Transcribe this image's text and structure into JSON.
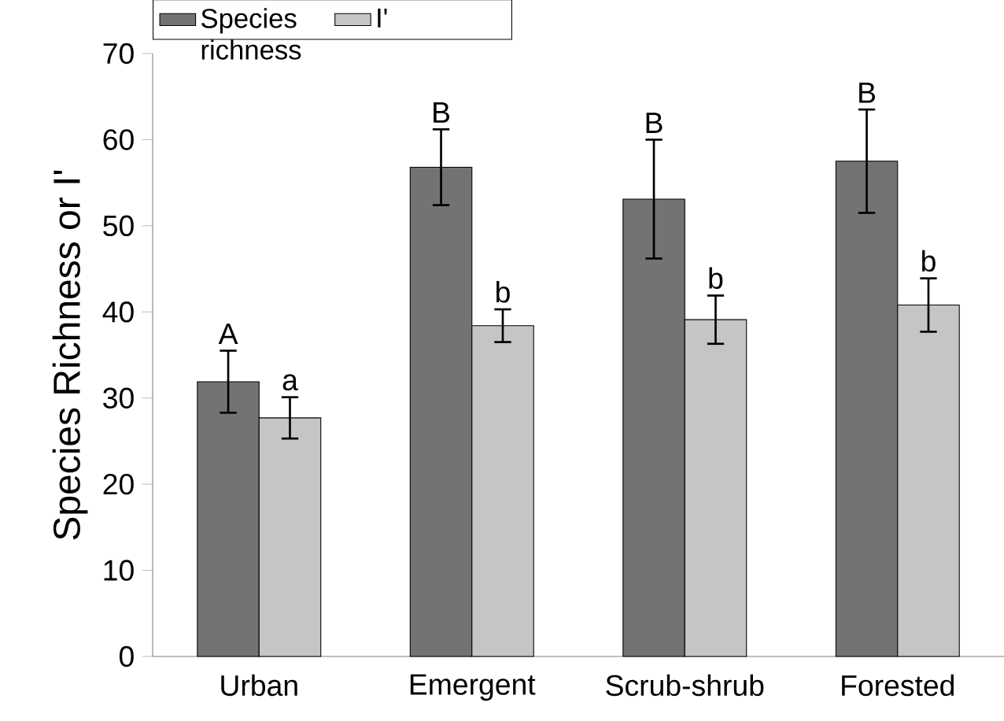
{
  "chart_data": {
    "type": "bar",
    "ylabel": "Species Richness or I'",
    "categories": [
      "Urban",
      "Emergent",
      "Scrub-shrub",
      "Forested"
    ],
    "series": [
      {
        "name": "Species richness",
        "color": "#737373",
        "values": [
          31.9,
          56.8,
          53.1,
          57.5
        ],
        "errors": [
          3.6,
          4.4,
          6.9,
          6.0
        ]
      },
      {
        "name": "I'",
        "color": "#c5c5c5",
        "values": [
          27.7,
          38.4,
          39.1,
          40.8
        ],
        "errors": [
          2.4,
          1.9,
          2.8,
          3.1
        ]
      }
    ],
    "ylim": [
      0,
      70
    ],
    "yticks": [
      0,
      10,
      20,
      30,
      40,
      50,
      60,
      70
    ],
    "legend": "top left",
    "grid": false,
    "annotations": [
      "A",
      "a",
      "B",
      "b",
      "B",
      "b",
      "B",
      "b"
    ]
  }
}
